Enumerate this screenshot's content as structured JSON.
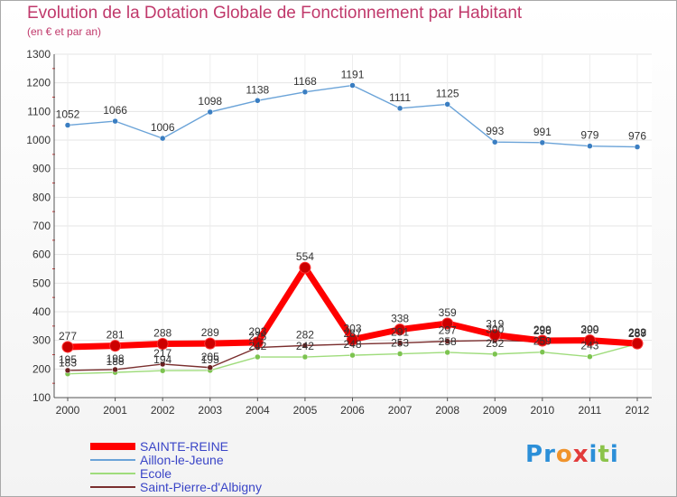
{
  "header": {
    "title": "Evolution de la Dotation Globale de Fonctionnement par Habitant",
    "subtitle": "(en € et par an)"
  },
  "logo": {
    "letters": [
      "P",
      "r",
      "o",
      "x",
      "i",
      "t",
      "i"
    ],
    "colors": [
      "#2c8fd8",
      "#2c8fd8",
      "#f0932b",
      "#e23b3b",
      "#2c8fd8",
      "#8bc34a",
      "#2c8fd8"
    ]
  },
  "chart_data": {
    "type": "line",
    "title": "Evolution de la Dotation Globale de Fonctionnement par Habitant",
    "subtitle": "(en € et par an)",
    "xlabel": "",
    "ylabel": "",
    "ylim": [
      100,
      1300
    ],
    "yticks": [
      100,
      200,
      300,
      400,
      500,
      600,
      700,
      800,
      900,
      1000,
      1100,
      1200,
      1300
    ],
    "grid": true,
    "categories": [
      "2000",
      "2001",
      "2002",
      "2003",
      "2004",
      "2005",
      "2006",
      "2007",
      "2008",
      "2009",
      "2010",
      "2011",
      "2012"
    ],
    "series": [
      {
        "name": "Aillon-le-Jeune",
        "color": "#6aa3d8",
        "marker": "#3a7ec2",
        "values": [
          1052,
          1066,
          1006,
          1098,
          1138,
          1168,
          1191,
          1111,
          1125,
          993,
          991,
          979,
          976
        ],
        "labels": [
          "1052",
          "1066",
          "1006",
          "1098",
          "1138",
          "1168",
          "1191",
          "1111",
          "1125",
          "993",
          "991",
          "979",
          "976"
        ]
      },
      {
        "name": "Ecole",
        "color": "#9fdc7c",
        "marker": "#7cc34f",
        "values": [
          183,
          188,
          194,
          195,
          242,
          242,
          248,
          253,
          258,
          252,
          259,
          243,
          288
        ],
        "labels": [
          "183",
          "188",
          "194",
          "195",
          "242",
          "242",
          "248",
          "253",
          "258",
          "252",
          "259",
          "243",
          "288"
        ]
      },
      {
        "name": "Saint-Pierre-d'Albigny",
        "color": "#7a2e2e",
        "marker": "#6b1f1f",
        "values": [
          195,
          198,
          217,
          205,
          275,
          282,
          287,
          291,
          297,
          300,
          296,
          299,
          287
        ],
        "labels": [
          "195",
          "198",
          "217",
          "205",
          "275",
          "282",
          "287",
          "291",
          "297",
          "300",
          "296",
          "299",
          "287"
        ]
      },
      {
        "name": "SAINTE-REINE",
        "color": "#ff0000",
        "marker": "#cc0000",
        "values": [
          277,
          281,
          288,
          289,
          293,
          554,
          303,
          338,
          359,
          319,
          299,
          300,
          289
        ],
        "labels": [
          "277",
          "281",
          "288",
          "289",
          "293",
          "554",
          "303",
          "338",
          "359",
          "319",
          "299",
          "300",
          "289"
        ]
      }
    ],
    "legend": {
      "position": "bottom-left",
      "entries": [
        "SAINTE-REINE",
        "Aillon-le-Jeune",
        "Ecole",
        "Saint-Pierre-d'Albigny"
      ]
    }
  }
}
